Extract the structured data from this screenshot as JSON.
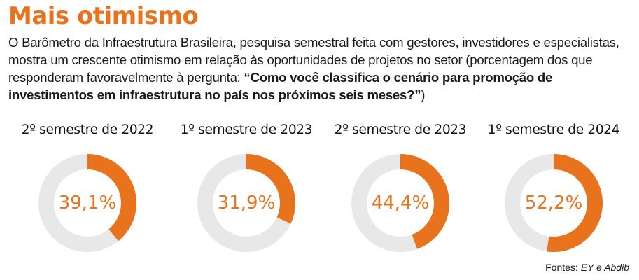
{
  "header": {
    "title": "Mais otimismo",
    "description": "O Barômetro da Infraestrutura Brasileira, pesquisa semestral feita com gestores, investidores e especialistas, mostra um crescente otimismo em relação às oportunidades de projetos no setor (porcentagem dos que responderam favoravelmente à pergunta: ",
    "question": "“Como você classifica o cenário para promoção de investimentos em infraestrutura no país nos próximos seis meses?”",
    "closing": ")"
  },
  "colors": {
    "accent": "#e8731c",
    "track": "#e8e8e8"
  },
  "chart_data": {
    "type": "pie",
    "categories": [
      "2º semestre de 2022",
      "1º semestre de 2023",
      "2º semestre de 2023",
      "1º semestre de 2024"
    ],
    "values": [
      39.1,
      31.9,
      44.4,
      52.2
    ],
    "labels": [
      "39,1%",
      "31,9%",
      "44,4%",
      "52,2%"
    ]
  },
  "footer": {
    "prefix": "Fontes: ",
    "sources": "EY e Abdib"
  }
}
